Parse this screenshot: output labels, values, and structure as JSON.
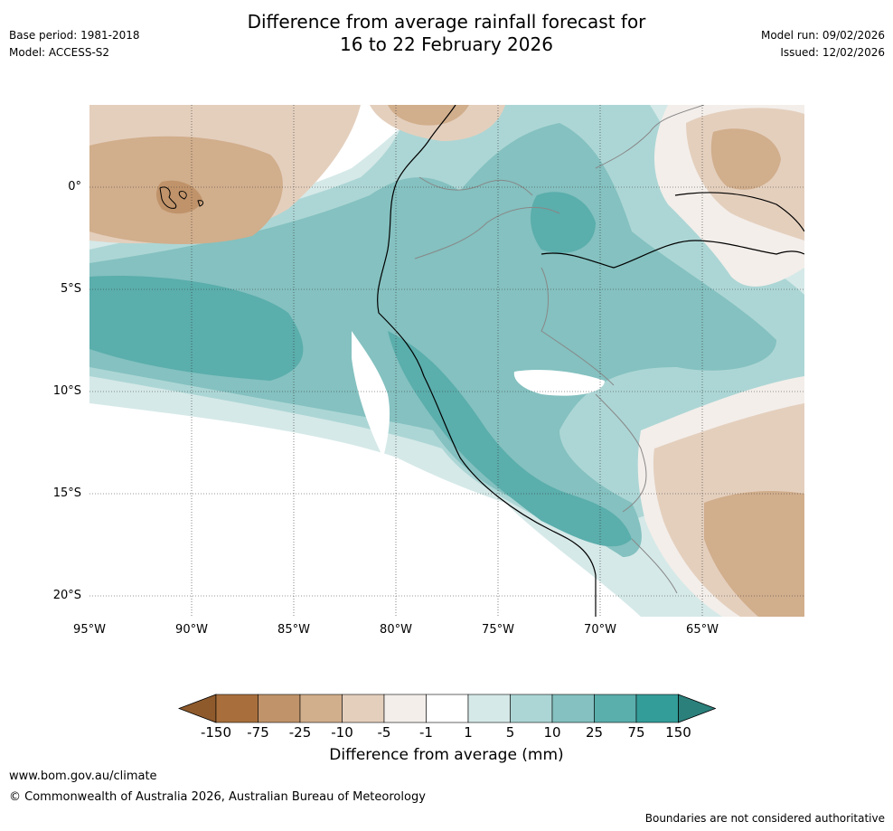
{
  "title_line1": "Difference from average rainfall forecast for",
  "title_line2": "16 to 22 February 2026",
  "base_period": "Base period: 1981-2018",
  "model": "Model: ACCESS-S2",
  "model_run": "Model run: 09/02/2026",
  "issued": "Issued: 12/02/2026",
  "lat_labels": [
    "0°",
    "5°S",
    "10°S",
    "15°S",
    "20°S"
  ],
  "lon_labels": [
    "95°W",
    "90°W",
    "85°W",
    "80°W",
    "75°W",
    "70°W",
    "65°W"
  ],
  "colorbar": {
    "label": "Difference from average (mm)",
    "ticks": [
      "-150",
      "-75",
      "-25",
      "-10",
      "-5",
      "-1",
      "1",
      "5",
      "10",
      "25",
      "75",
      "150"
    ],
    "colors": [
      "#a86f3c",
      "#c0936a",
      "#d1ae8c",
      "#e4cfbd",
      "#f3eeea",
      "#ffffff",
      "#d5e9e8",
      "#acd6d5",
      "#84c1c0",
      "#5aaeac",
      "#339d99"
    ],
    "under_color": "#8e5a2c",
    "over_color": "#2b807c"
  },
  "footer_url": "www.bom.gov.au/climate",
  "footer_copyright": "© Commonwealth of Australia 2026, Australian Bureau of Meteorology",
  "disclaimer": "Boundaries are not considered authoritative"
}
